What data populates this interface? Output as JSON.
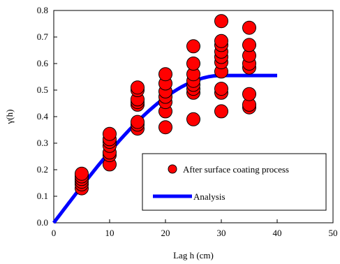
{
  "chart_data": {
    "type": "scatter",
    "title": "",
    "xlabel": "Lag h (cm)",
    "ylabel": "γ(h)",
    "xlim": [
      0,
      50
    ],
    "ylim": [
      0,
      0.8
    ],
    "x_ticks": [
      "0",
      "10",
      "20",
      "30",
      "40",
      "50"
    ],
    "y_ticks": [
      "0.0",
      "0.1",
      "0.2",
      "0.3",
      "0.4",
      "0.5",
      "0.6",
      "0.7",
      "0.8"
    ],
    "grid": false,
    "legend_position": "bottom-right",
    "series": [
      {
        "name": "After surface coating process",
        "kind": "scatter",
        "marker_color": "#ff0000",
        "points": [
          {
            "x": 5,
            "y": 0.13
          },
          {
            "x": 5,
            "y": 0.145
          },
          {
            "x": 5,
            "y": 0.155
          },
          {
            "x": 5,
            "y": 0.165
          },
          {
            "x": 5,
            "y": 0.175
          },
          {
            "x": 5,
            "y": 0.185
          },
          {
            "x": 10,
            "y": 0.22
          },
          {
            "x": 10,
            "y": 0.255
          },
          {
            "x": 10,
            "y": 0.265
          },
          {
            "x": 10,
            "y": 0.29
          },
          {
            "x": 10,
            "y": 0.305
          },
          {
            "x": 10,
            "y": 0.315
          },
          {
            "x": 10,
            "y": 0.335
          },
          {
            "x": 15,
            "y": 0.355
          },
          {
            "x": 15,
            "y": 0.37
          },
          {
            "x": 15,
            "y": 0.38
          },
          {
            "x": 15,
            "y": 0.445
          },
          {
            "x": 15,
            "y": 0.455
          },
          {
            "x": 15,
            "y": 0.465
          },
          {
            "x": 15,
            "y": 0.5
          },
          {
            "x": 15,
            "y": 0.51
          },
          {
            "x": 20,
            "y": 0.36
          },
          {
            "x": 20,
            "y": 0.42
          },
          {
            "x": 20,
            "y": 0.455
          },
          {
            "x": 20,
            "y": 0.475
          },
          {
            "x": 20,
            "y": 0.495
          },
          {
            "x": 20,
            "y": 0.525
          },
          {
            "x": 20,
            "y": 0.56
          },
          {
            "x": 25,
            "y": 0.39
          },
          {
            "x": 25,
            "y": 0.49
          },
          {
            "x": 25,
            "y": 0.505
          },
          {
            "x": 25,
            "y": 0.52
          },
          {
            "x": 25,
            "y": 0.535
          },
          {
            "x": 25,
            "y": 0.56
          },
          {
            "x": 25,
            "y": 0.6
          },
          {
            "x": 25,
            "y": 0.665
          },
          {
            "x": 30,
            "y": 0.42
          },
          {
            "x": 30,
            "y": 0.49
          },
          {
            "x": 30,
            "y": 0.505
          },
          {
            "x": 30,
            "y": 0.57
          },
          {
            "x": 30,
            "y": 0.605
          },
          {
            "x": 30,
            "y": 0.625
          },
          {
            "x": 30,
            "y": 0.645
          },
          {
            "x": 30,
            "y": 0.67
          },
          {
            "x": 30,
            "y": 0.685
          },
          {
            "x": 30,
            "y": 0.76
          },
          {
            "x": 35,
            "y": 0.435
          },
          {
            "x": 35,
            "y": 0.445
          },
          {
            "x": 35,
            "y": 0.485
          },
          {
            "x": 35,
            "y": 0.585
          },
          {
            "x": 35,
            "y": 0.6
          },
          {
            "x": 35,
            "y": 0.63
          },
          {
            "x": 35,
            "y": 0.67
          },
          {
            "x": 35,
            "y": 0.735
          }
        ]
      },
      {
        "name": "Analysis",
        "kind": "line",
        "line_color": "#0000ff",
        "model": "spherical",
        "nugget": 0,
        "sill": 0.555,
        "range": 30,
        "x_max": 40
      }
    ]
  }
}
